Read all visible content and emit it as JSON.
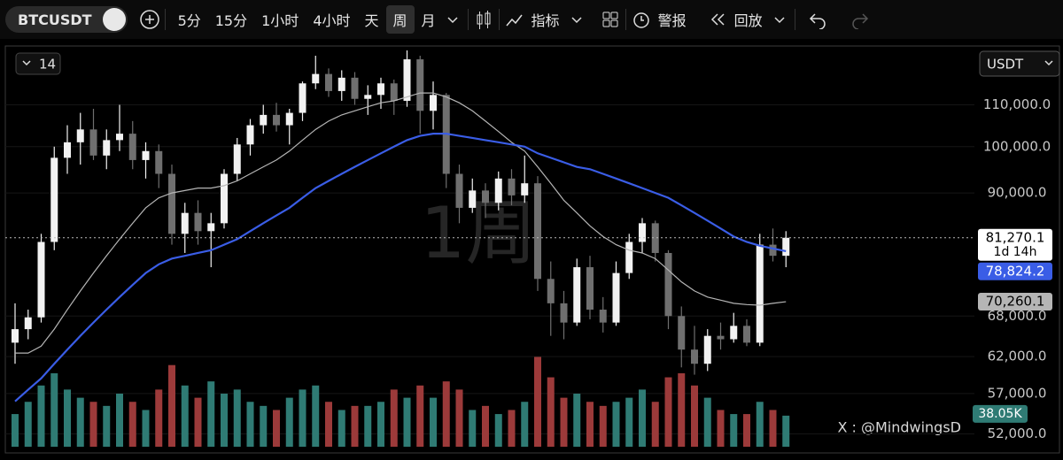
{
  "toolbar": {
    "symbol": "BTCUSDT",
    "intervals": [
      "5分",
      "15分",
      "1小时",
      "4小时",
      "天",
      "周",
      "月"
    ],
    "active_interval": 5,
    "indicators": "指标",
    "alerts": "警报",
    "replay": "回放"
  },
  "chart_data": {
    "type": "candlestick",
    "watermark": "1周",
    "legend_count": "14",
    "currency": "USDT",
    "credit": "X : @MindwingsD",
    "log_scale": true,
    "ylim": [
      50500,
      125000
    ],
    "yticks": [
      {
        "value": 110000,
        "label": "110,000.0"
      },
      {
        "value": 100000,
        "label": "100,000.0"
      },
      {
        "value": 90000,
        "label": "90,000.0"
      },
      {
        "value": 68000,
        "label": "68,000.0"
      },
      {
        "value": 62000,
        "label": "62,000.0"
      },
      {
        "value": 57000,
        "label": "57,000.0"
      },
      {
        "value": 52000,
        "label": "52,000.0"
      }
    ],
    "up_color": "#f2f2f2",
    "down_color": "#6f6f6f",
    "open": [
      64000,
      66000,
      67800,
      80500,
      97500,
      101000,
      104000,
      98000,
      101500,
      103000,
      97000,
      99000,
      94000,
      82000,
      86000,
      82500,
      84000,
      94000,
      100500,
      105000,
      107500,
      105000,
      108000,
      115500,
      118000,
      113500,
      117000,
      111500,
      112500,
      115500,
      111000,
      122000,
      108500,
      112500,
      94000,
      87000,
      90500,
      88000,
      93000,
      89500,
      92000,
      74000,
      70000,
      67000,
      76000,
      69000,
      67000,
      75000,
      80500,
      84000,
      78500,
      68000,
      63000,
      61000,
      65000,
      64500,
      66500,
      64000,
      80000,
      78000
    ],
    "high": [
      70000,
      69000,
      82000,
      100000,
      105000,
      108000,
      109000,
      104000,
      110000,
      106000,
      101000,
      100500,
      96000,
      88000,
      88500,
      86000,
      95000,
      102000,
      106500,
      110000,
      110500,
      109000,
      116000,
      123000,
      119500,
      119000,
      118500,
      115000,
      117000,
      116500,
      124500,
      123000,
      116000,
      113000,
      96000,
      93000,
      92000,
      94500,
      95000,
      98000,
      93500,
      77000,
      72000,
      77500,
      78000,
      71000,
      77000,
      82000,
      85000,
      84500,
      79000,
      69500,
      66500,
      66000,
      67000,
      68500,
      67500,
      82000,
      83000,
      82500
    ],
    "low": [
      61000,
      64500,
      67000,
      79000,
      94000,
      96000,
      97000,
      95000,
      99000,
      95000,
      93000,
      91000,
      80000,
      78500,
      80000,
      76000,
      83000,
      92500,
      98000,
      103000,
      103500,
      100500,
      106000,
      114000,
      112000,
      111000,
      110000,
      107500,
      109000,
      107500,
      109500,
      103000,
      104000,
      91000,
      84000,
      86000,
      85000,
      86500,
      87500,
      88000,
      72000,
      65000,
      64500,
      66500,
      67500,
      65500,
      66500,
      74000,
      78500,
      77000,
      66000,
      60500,
      59500,
      60000,
      63000,
      64000,
      63500,
      63500,
      77000,
      76000
    ],
    "close": [
      66000,
      67800,
      80500,
      97500,
      101000,
      104000,
      98000,
      101500,
      103000,
      97000,
      99000,
      94000,
      82000,
      86000,
      82500,
      84000,
      94000,
      100500,
      105000,
      107500,
      105000,
      108000,
      115500,
      118000,
      113500,
      117000,
      111500,
      112500,
      115500,
      111000,
      122000,
      108500,
      112500,
      94000,
      87000,
      90500,
      88000,
      93000,
      89500,
      92000,
      74000,
      70000,
      67000,
      76000,
      69000,
      67000,
      75000,
      80500,
      84000,
      78500,
      68000,
      63000,
      61000,
      65000,
      64500,
      66500,
      64000,
      80000,
      78000,
      81270.1
    ],
    "last_price": {
      "label": "81,270.1",
      "countdown": "1d 14h"
    },
    "ma_lines": [
      {
        "color": "#b5b5b5",
        "label": "70,260.1",
        "values": [
          62500,
          62500,
          63500,
          66000,
          69000,
          72000,
          75000,
          78000,
          81000,
          84000,
          87000,
          89000,
          90000,
          90500,
          91000,
          91000,
          91500,
          92500,
          94000,
          95500,
          97000,
          99000,
          101500,
          104000,
          106000,
          107500,
          108500,
          109500,
          110500,
          111000,
          112000,
          113000,
          113000,
          112000,
          110500,
          108500,
          106000,
          103500,
          101000,
          99000,
          95500,
          92000,
          88500,
          86000,
          83500,
          81500,
          80000,
          79000,
          78500,
          77500,
          75500,
          73500,
          72000,
          71000,
          70500,
          70000,
          69800,
          69700,
          70000,
          70260.1
        ]
      },
      {
        "color": "#3a5de6",
        "label": "78,824.2",
        "values": [
          56000,
          57500,
          59000,
          61000,
          63000,
          65000,
          67000,
          69000,
          71000,
          73000,
          75000,
          76500,
          77500,
          78000,
          78500,
          79000,
          80000,
          81000,
          82500,
          84000,
          85500,
          87000,
          89000,
          91000,
          92500,
          94000,
          95500,
          97000,
          98500,
          100000,
          101500,
          102500,
          103000,
          103000,
          102500,
          102000,
          101500,
          101000,
          100500,
          100000,
          98500,
          97500,
          96500,
          95500,
          95000,
          94000,
          93000,
          92000,
          91000,
          90000,
          89000,
          87500,
          86000,
          84500,
          83000,
          81500,
          80500,
          79800,
          79300,
          78824.2
        ]
      }
    ],
    "volume": {
      "ylim": [
        0,
        130
      ],
      "up_color": "#2f7b74",
      "down_color": "#9c3a3a",
      "label": "38.05K",
      "values": [
        40,
        55,
        75,
        90,
        70,
        60,
        55,
        50,
        65,
        55,
        45,
        70,
        100,
        75,
        60,
        80,
        65,
        70,
        55,
        50,
        45,
        60,
        70,
        75,
        55,
        45,
        50,
        50,
        55,
        70,
        60,
        75,
        60,
        80,
        70,
        45,
        50,
        40,
        45,
        55,
        110,
        85,
        60,
        65,
        55,
        50,
        55,
        60,
        70,
        55,
        85,
        90,
        75,
        60,
        45,
        40,
        40,
        55,
        45,
        38.05
      ]
    }
  }
}
